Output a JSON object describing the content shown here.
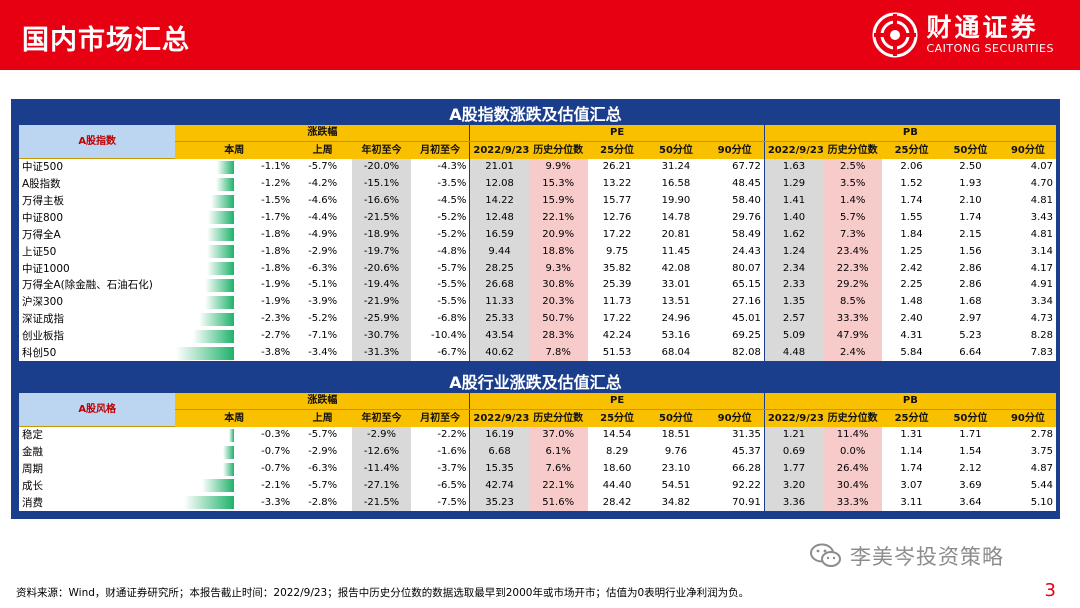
{
  "header": {
    "title": "国内市场汇总"
  },
  "logo": {
    "cn": "财通证券",
    "en": "CAITONG SECURITIES"
  },
  "colors": {
    "brand_red": "#e60012",
    "panel_blue": "#1a3d8c",
    "header_yellow": "#f9c000",
    "bar_green": "#1fb26b",
    "highlight_pink": "#f8cbcb",
    "highlight_grey": "#d9d9d9"
  },
  "section1": {
    "title": "A股指数涨跌及估值汇总",
    "corner_label": "A股指数",
    "group_labels": {
      "change": "涨跌幅",
      "pe": "PE",
      "pb": "PB"
    },
    "col_labels": [
      "本周",
      "上周",
      "年初至今",
      "月初至今",
      "2022/9/23",
      "历史分位数",
      "25分位",
      "50分位",
      "90分位",
      "2022/9/23",
      "历史分位数",
      "25分位",
      "50分位",
      "90分位"
    ],
    "rows": [
      {
        "name": "中证500",
        "bar": 1.1,
        "week": "-1.1%",
        "lastweek": "-5.7%",
        "ytd": "-20.0%",
        "mtd": "-4.3%",
        "pe": "21.01",
        "pe_pct": "9.9%",
        "pe25": "26.21",
        "pe50": "31.24",
        "pe90": "67.72",
        "pb": "1.63",
        "pb_pct": "2.5%",
        "pb25": "2.06",
        "pb50": "2.50",
        "pb90": "4.07"
      },
      {
        "name": "A股指数",
        "bar": 1.2,
        "week": "-1.2%",
        "lastweek": "-4.2%",
        "ytd": "-15.1%",
        "mtd": "-3.5%",
        "pe": "12.08",
        "pe_pct": "15.3%",
        "pe25": "13.22",
        "pe50": "16.58",
        "pe90": "48.45",
        "pb": "1.29",
        "pb_pct": "3.5%",
        "pb25": "1.52",
        "pb50": "1.93",
        "pb90": "4.70"
      },
      {
        "name": "万得主板",
        "bar": 1.5,
        "week": "-1.5%",
        "lastweek": "-4.6%",
        "ytd": "-16.6%",
        "mtd": "-4.5%",
        "pe": "14.22",
        "pe_pct": "15.9%",
        "pe25": "15.77",
        "pe50": "19.90",
        "pe90": "58.40",
        "pb": "1.41",
        "pb_pct": "1.4%",
        "pb25": "1.74",
        "pb50": "2.10",
        "pb90": "4.81"
      },
      {
        "name": "中证800",
        "bar": 1.7,
        "week": "-1.7%",
        "lastweek": "-4.4%",
        "ytd": "-21.5%",
        "mtd": "-5.2%",
        "pe": "12.48",
        "pe_pct": "22.1%",
        "pe25": "12.76",
        "pe50": "14.78",
        "pe90": "29.76",
        "pb": "1.40",
        "pb_pct": "5.7%",
        "pb25": "1.55",
        "pb50": "1.74",
        "pb90": "3.43"
      },
      {
        "name": "万得全A",
        "bar": 1.8,
        "week": "-1.8%",
        "lastweek": "-4.9%",
        "ytd": "-18.9%",
        "mtd": "-5.2%",
        "pe": "16.59",
        "pe_pct": "20.9%",
        "pe25": "17.22",
        "pe50": "20.81",
        "pe90": "58.49",
        "pb": "1.62",
        "pb_pct": "7.3%",
        "pb25": "1.84",
        "pb50": "2.15",
        "pb90": "4.81"
      },
      {
        "name": "上证50",
        "bar": 1.8,
        "week": "-1.8%",
        "lastweek": "-2.9%",
        "ytd": "-19.7%",
        "mtd": "-4.8%",
        "pe": "9.44",
        "pe_pct": "18.8%",
        "pe25": "9.75",
        "pe50": "11.45",
        "pe90": "24.43",
        "pb": "1.24",
        "pb_pct": "23.4%",
        "pb25": "1.25",
        "pb50": "1.56",
        "pb90": "3.14"
      },
      {
        "name": "中证1000",
        "bar": 1.8,
        "week": "-1.8%",
        "lastweek": "-6.3%",
        "ytd": "-20.6%",
        "mtd": "-5.7%",
        "pe": "28.25",
        "pe_pct": "9.3%",
        "pe25": "35.82",
        "pe50": "42.08",
        "pe90": "80.07",
        "pb": "2.34",
        "pb_pct": "22.3%",
        "pb25": "2.42",
        "pb50": "2.86",
        "pb90": "4.17"
      },
      {
        "name": "万得全A(除金融、石油石化)",
        "bar": 1.9,
        "week": "-1.9%",
        "lastweek": "-5.1%",
        "ytd": "-19.4%",
        "mtd": "-5.5%",
        "pe": "26.68",
        "pe_pct": "30.8%",
        "pe25": "25.39",
        "pe50": "33.01",
        "pe90": "65.15",
        "pb": "2.33",
        "pb_pct": "29.2%",
        "pb25": "2.25",
        "pb50": "2.86",
        "pb90": "4.91"
      },
      {
        "name": "沪深300",
        "bar": 1.9,
        "week": "-1.9%",
        "lastweek": "-3.9%",
        "ytd": "-21.9%",
        "mtd": "-5.5%",
        "pe": "11.33",
        "pe_pct": "20.3%",
        "pe25": "11.73",
        "pe50": "13.51",
        "pe90": "27.16",
        "pb": "1.35",
        "pb_pct": "8.5%",
        "pb25": "1.48",
        "pb50": "1.68",
        "pb90": "3.34"
      },
      {
        "name": "深证成指",
        "bar": 2.3,
        "week": "-2.3%",
        "lastweek": "-5.2%",
        "ytd": "-25.9%",
        "mtd": "-6.8%",
        "pe": "25.33",
        "pe_pct": "50.7%",
        "pe25": "17.22",
        "pe50": "24.96",
        "pe90": "45.01",
        "pb": "2.57",
        "pb_pct": "33.3%",
        "pb25": "2.40",
        "pb50": "2.97",
        "pb90": "4.73"
      },
      {
        "name": "创业板指",
        "bar": 2.7,
        "week": "-2.7%",
        "lastweek": "-7.1%",
        "ytd": "-30.7%",
        "mtd": "-10.4%",
        "pe": "43.54",
        "pe_pct": "28.3%",
        "pe25": "42.24",
        "pe50": "53.16",
        "pe90": "69.25",
        "pb": "5.09",
        "pb_pct": "47.9%",
        "pb25": "4.31",
        "pb50": "5.23",
        "pb90": "8.28"
      },
      {
        "name": "科创50",
        "bar": 3.8,
        "week": "-3.8%",
        "lastweek": "-3.4%",
        "ytd": "-31.3%",
        "mtd": "-6.7%",
        "pe": "40.62",
        "pe_pct": "7.8%",
        "pe25": "51.53",
        "pe50": "68.04",
        "pe90": "82.08",
        "pb": "4.48",
        "pb_pct": "2.4%",
        "pb25": "5.84",
        "pb50": "6.64",
        "pb90": "7.83"
      }
    ]
  },
  "section2": {
    "title": "A股行业涨跌及估值汇总",
    "corner_label": "A股风格",
    "group_labels": {
      "change": "涨跌幅",
      "pe": "PE",
      "pb": "PB"
    },
    "col_labels": [
      "本周",
      "上周",
      "年初至今",
      "月初至今",
      "2022/9/23",
      "历史分位数",
      "25分位",
      "50分位",
      "90分位",
      "2022/9/23",
      "历史分位数",
      "25分位",
      "50分位",
      "90分位"
    ],
    "rows": [
      {
        "name": "稳定",
        "bar": 0.3,
        "week": "-0.3%",
        "lastweek": "-5.7%",
        "ytd": "-2.9%",
        "mtd": "-2.2%",
        "pe": "16.19",
        "pe_pct": "37.0%",
        "pe25": "14.54",
        "pe50": "18.51",
        "pe90": "31.35",
        "pb": "1.21",
        "pb_pct": "11.4%",
        "pb25": "1.31",
        "pb50": "1.71",
        "pb90": "2.78"
      },
      {
        "name": "金融",
        "bar": 0.7,
        "week": "-0.7%",
        "lastweek": "-2.9%",
        "ytd": "-12.6%",
        "mtd": "-1.6%",
        "pe": "6.68",
        "pe_pct": "6.1%",
        "pe25": "8.29",
        "pe50": "9.76",
        "pe90": "45.37",
        "pb": "0.69",
        "pb_pct": "0.0%",
        "pb25": "1.14",
        "pb50": "1.54",
        "pb90": "3.75"
      },
      {
        "name": "周期",
        "bar": 0.7,
        "week": "-0.7%",
        "lastweek": "-6.3%",
        "ytd": "-11.4%",
        "mtd": "-3.7%",
        "pe": "15.35",
        "pe_pct": "7.6%",
        "pe25": "18.60",
        "pe50": "23.10",
        "pe90": "66.28",
        "pb": "1.77",
        "pb_pct": "26.4%",
        "pb25": "1.74",
        "pb50": "2.12",
        "pb90": "4.87"
      },
      {
        "name": "成长",
        "bar": 2.1,
        "week": "-2.1%",
        "lastweek": "-5.7%",
        "ytd": "-27.1%",
        "mtd": "-6.5%",
        "pe": "42.74",
        "pe_pct": "22.1%",
        "pe25": "44.40",
        "pe50": "54.51",
        "pe90": "92.22",
        "pb": "3.20",
        "pb_pct": "30.4%",
        "pb25": "3.07",
        "pb50": "3.69",
        "pb90": "5.44"
      },
      {
        "name": "消费",
        "bar": 3.3,
        "week": "-3.3%",
        "lastweek": "-2.8%",
        "ytd": "-21.5%",
        "mtd": "-7.5%",
        "pe": "35.23",
        "pe_pct": "51.6%",
        "pe25": "28.42",
        "pe50": "34.82",
        "pe90": "70.91",
        "pb": "3.36",
        "pb_pct": "33.3%",
        "pb25": "3.11",
        "pb50": "3.64",
        "pb90": "5.10"
      }
    ]
  },
  "footer": {
    "source": "资料来源：Wind，财通证券研究所；本报告截止时间：2022/9/23；报告中历史分位数的数据选取最早到2000年或市场开市；估值为0表明行业净利润为负。"
  },
  "page_number": "3",
  "watermark": {
    "text": "李美岑投资策略"
  }
}
